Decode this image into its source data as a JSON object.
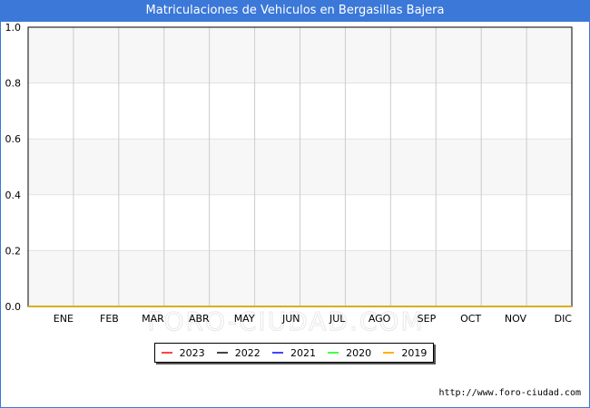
{
  "header": {
    "title": "Matriculaciones de Vehiculos en Bergasillas Bajera"
  },
  "footer": {
    "source": "http://www.foro-ciudad.com"
  },
  "watermark": "FORO-CIUDAD.COM",
  "chart_data": {
    "type": "line",
    "title": "Matriculaciones de Vehiculos en Bergasillas Bajera",
    "xlabel": "",
    "ylabel": "",
    "categories": [
      "ENE",
      "FEB",
      "MAR",
      "ABR",
      "MAY",
      "JUN",
      "JUL",
      "AGO",
      "SEP",
      "OCT",
      "NOV",
      "DIC"
    ],
    "ylim": [
      0,
      1.0
    ],
    "yticks": [
      "0.0",
      "0.2",
      "0.4",
      "0.6",
      "0.8",
      "1.0"
    ],
    "grid": true,
    "legend_position": "bottom",
    "series": [
      {
        "name": "2023",
        "color": "#ff4444",
        "values": [
          0,
          0,
          0,
          0,
          0,
          0,
          0,
          0,
          0,
          0,
          0,
          0
        ]
      },
      {
        "name": "2022",
        "color": "#444444",
        "values": [
          0,
          0,
          0,
          0,
          0,
          0,
          0,
          0,
          0,
          0,
          0,
          0
        ]
      },
      {
        "name": "2021",
        "color": "#4444ff",
        "values": [
          0,
          0,
          0,
          0,
          0,
          0,
          0,
          0,
          0,
          0,
          0,
          0
        ]
      },
      {
        "name": "2020",
        "color": "#44ff44",
        "values": [
          0,
          0,
          0,
          0,
          0,
          0,
          0,
          0,
          0,
          0,
          0,
          0
        ]
      },
      {
        "name": "2019",
        "color": "#ffb000",
        "values": [
          0,
          0,
          0,
          0,
          0,
          0,
          0,
          0,
          0,
          0,
          0,
          0
        ]
      }
    ]
  }
}
